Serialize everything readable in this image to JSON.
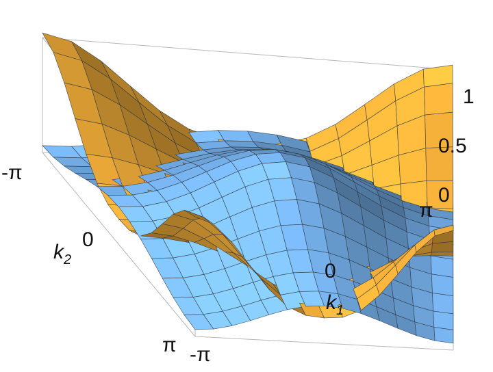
{
  "chart_data": {
    "type": "surface",
    "title": "",
    "xlabel": {
      "main": "k",
      "sub": "1"
    },
    "ylabel": {
      "main": "k",
      "sub": "2"
    },
    "zlabel": "",
    "xlim": [
      -3.14159,
      3.14159
    ],
    "ylim": [
      -3.14159,
      3.14159
    ],
    "zlim": [
      0,
      1
    ],
    "x_ticks": [
      "-π",
      "0",
      "π"
    ],
    "y_ticks": [
      "-π",
      "0",
      "π"
    ],
    "z_ticks": [
      "0",
      "0.5",
      "1"
    ],
    "surfaces": [
      {
        "band": "upper",
        "color": "#f5b03a"
      },
      {
        "band": "lower",
        "color": "#78b4f0"
      }
    ],
    "box": true,
    "grid": false,
    "legend": "none"
  }
}
